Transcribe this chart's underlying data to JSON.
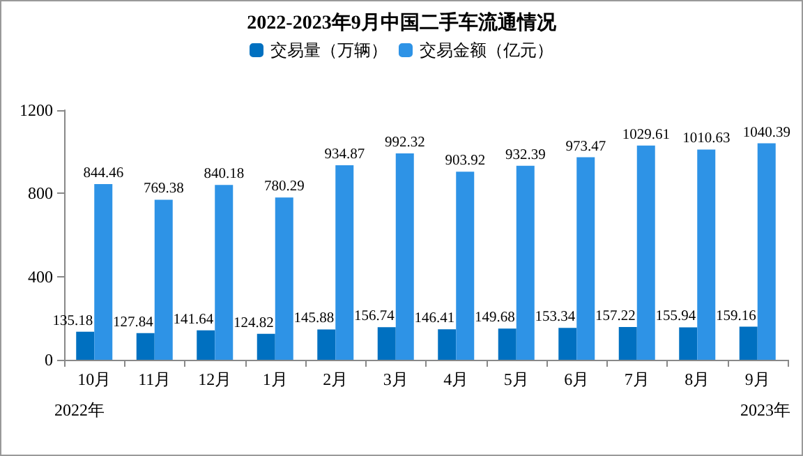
{
  "chart_data": {
    "type": "bar",
    "title": "2022-2023年9月中国二手车流通情况",
    "categories": [
      "10月",
      "11月",
      "12月",
      "1月",
      "2月",
      "3月",
      "4月",
      "5月",
      "6月",
      "7月",
      "8月",
      "9月"
    ],
    "series": [
      {
        "name": "交易量（万辆）",
        "color": "#0070c0",
        "values": [
          135.18,
          127.84,
          141.64,
          124.82,
          145.88,
          156.74,
          146.41,
          149.68,
          153.34,
          157.22,
          155.94,
          159.16
        ]
      },
      {
        "name": "交易金额（亿元）",
        "color": "#2e93e6",
        "values": [
          844.46,
          769.38,
          840.18,
          780.29,
          934.87,
          992.32,
          903.92,
          932.39,
          973.47,
          1029.61,
          1010.63,
          1040.39
        ]
      }
    ],
    "ylim": [
      0,
      1200
    ],
    "yticks": [
      0,
      400,
      800,
      1200
    ],
    "grid": false,
    "legend": "top",
    "data_labels": true,
    "annotations": [
      "2022年",
      "2023年"
    ]
  }
}
